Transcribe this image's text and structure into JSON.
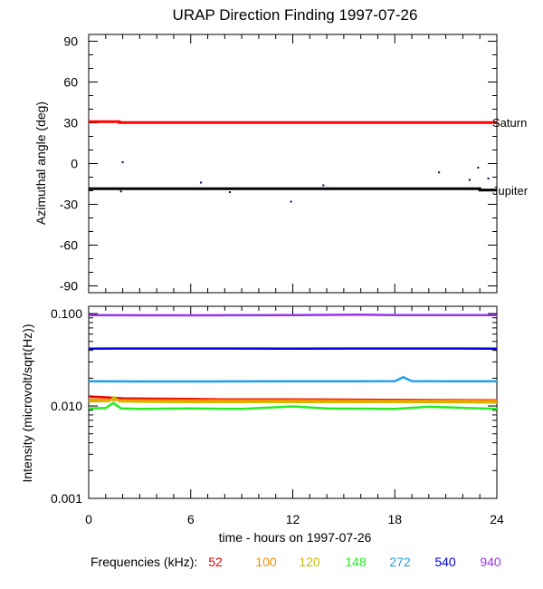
{
  "chart_data": [
    {
      "type": "line",
      "title": "URAP Direction Finding  1997-07-26",
      "ylabel": "Azimuthal angle (deg)",
      "ylim": [
        -95,
        95
      ],
      "yticks": [
        90,
        60,
        30,
        0,
        -30,
        -60,
        -90
      ],
      "xlim": [
        0,
        24
      ],
      "series": [
        {
          "name": "Saturn",
          "color": "#ff0000",
          "x": [
            0,
            1.8,
            1.8,
            24
          ],
          "y": [
            30.8,
            30.8,
            30.2,
            30.2
          ]
        },
        {
          "name": "Jupiter",
          "color": "#000000",
          "x": [
            0,
            23,
            23,
            24
          ],
          "y": [
            -18.5,
            -18.5,
            -19.5,
            -19.5
          ]
        }
      ],
      "scatter_points": {
        "color": "#000066",
        "x": [
          1.9,
          2.0,
          6.6,
          8.3,
          11.9,
          13.8,
          20.6,
          22.4,
          22.9,
          23.5
        ],
        "y": [
          -20.5,
          1,
          -14,
          -21,
          -28,
          -16,
          -6.5,
          -12,
          -3,
          -11
        ]
      }
    },
    {
      "type": "line",
      "ylabel": "Intensity (microvolt/sqrt(Hz))",
      "xlabel": "time - hours on 1997-07-26",
      "yscale": "log",
      "ylim": [
        0.001,
        0.12
      ],
      "yticks": [
        0.1,
        0.01,
        0.001
      ],
      "ytick_labels": [
        "0.100",
        "0.010",
        "0.001"
      ],
      "xlim": [
        0,
        24
      ],
      "xticks": [
        0,
        6,
        12,
        18,
        24
      ],
      "legend_title": "Frequencies (kHz):",
      "series": [
        {
          "name": "52",
          "color": "#ee0000",
          "x": [
            0,
            1,
            2,
            4,
            6,
            8,
            12,
            16,
            20,
            24
          ],
          "y": [
            0.0127,
            0.0124,
            0.0121,
            0.012,
            0.0119,
            0.0118,
            0.0118,
            0.0117,
            0.0116,
            0.0115
          ]
        },
        {
          "name": "100",
          "color": "#ff8c00",
          "x": [
            0,
            1,
            2,
            6,
            12,
            18,
            24
          ],
          "y": [
            0.0118,
            0.0117,
            0.0116,
            0.0115,
            0.0115,
            0.0114,
            0.0114
          ]
        },
        {
          "name": "120",
          "color": "#ccbb00",
          "x": [
            0,
            1.2,
            1.5,
            1.8,
            3,
            6,
            12,
            18,
            24
          ],
          "y": [
            0.0112,
            0.0113,
            0.0125,
            0.0112,
            0.0111,
            0.011,
            0.011,
            0.011,
            0.0109
          ]
        },
        {
          "name": "148",
          "color": "#22ee22",
          "x": [
            0,
            1,
            1.45,
            1.9,
            3,
            6,
            9,
            12,
            14,
            18,
            20,
            24
          ],
          "y": [
            0.0094,
            0.0095,
            0.0108,
            0.0094,
            0.0093,
            0.0094,
            0.0093,
            0.0099,
            0.0094,
            0.0093,
            0.0098,
            0.0093
          ]
        },
        {
          "name": "272",
          "color": "#1ea0ee",
          "x": [
            0,
            6,
            12,
            18,
            18.5,
            19,
            24
          ],
          "y": [
            0.0185,
            0.0184,
            0.0185,
            0.0186,
            0.0205,
            0.0186,
            0.0185
          ]
        },
        {
          "name": "540",
          "color": "#0000dd",
          "x": [
            0,
            6,
            12,
            18,
            24
          ],
          "y": [
            0.0418,
            0.0419,
            0.0418,
            0.0419,
            0.0418
          ]
        },
        {
          "name": "940",
          "color": "#9933ee",
          "x": [
            0,
            6,
            12,
            16,
            18,
            24
          ],
          "y": [
            0.0962,
            0.0958,
            0.0962,
            0.0975,
            0.0965,
            0.0962
          ]
        }
      ]
    }
  ]
}
